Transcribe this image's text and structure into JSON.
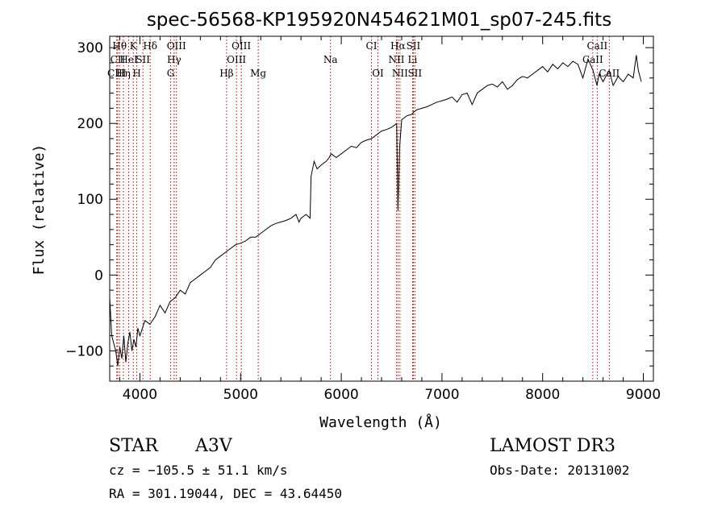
{
  "chart_data": {
    "type": "line",
    "title": "spec-56568-KP195920N454621M01_sp07-245.fits",
    "xlabel": "Wavelength (Å)",
    "ylabel": "Flux (relative)",
    "xlim": [
      3700,
      9100
    ],
    "ylim": [
      -140,
      315
    ],
    "x_ticks": [
      4000,
      5000,
      6000,
      7000,
      8000,
      9000
    ],
    "y_ticks": [
      -100,
      0,
      100,
      200,
      300
    ],
    "grid": false,
    "series": [
      {
        "x": [
          3700,
          3720,
          3740,
          3760,
          3780,
          3800,
          3820,
          3840,
          3860,
          3880,
          3900,
          3920,
          3940,
          3960,
          3980,
          4000,
          4050,
          4100,
          4150,
          4200,
          4250,
          4300,
          4350,
          4400,
          4450,
          4500,
          4550,
          4600,
          4650,
          4700,
          4750,
          4800,
          4850,
          4900,
          4950,
          5000,
          5050,
          5100,
          5150,
          5200,
          5250,
          5300,
          5350,
          5400,
          5450,
          5500,
          5550,
          5580,
          5600,
          5650,
          5690,
          5700,
          5730,
          5760,
          5800,
          5850,
          5880,
          5900,
          5950,
          6000,
          6050,
          6100,
          6150,
          6200,
          6250,
          6300,
          6350,
          6400,
          6450,
          6500,
          6550,
          6563,
          6580,
          6600,
          6650,
          6700,
          6720,
          6750,
          6800,
          6850,
          6900,
          6950,
          7000,
          7050,
          7100,
          7150,
          7200,
          7250,
          7300,
          7350,
          7400,
          7450,
          7500,
          7550,
          7600,
          7650,
          7700,
          7750,
          7800,
          7850,
          7900,
          7950,
          8000,
          8050,
          8100,
          8150,
          8200,
          8250,
          8300,
          8350,
          8400,
          8450,
          8500,
          8540,
          8560,
          8600,
          8660,
          8680,
          8700,
          8750,
          8800,
          8850,
          8900,
          8930,
          8950,
          8980
        ],
        "y": [
          -30,
          -80,
          -90,
          -100,
          -120,
          -95,
          -110,
          -80,
          -115,
          -90,
          -75,
          -100,
          -85,
          -95,
          -70,
          -80,
          -60,
          -65,
          -55,
          -40,
          -50,
          -35,
          -30,
          -20,
          -25,
          -10,
          -5,
          0,
          5,
          10,
          20,
          25,
          30,
          35,
          40,
          42,
          45,
          50,
          50,
          55,
          60,
          65,
          68,
          70,
          72,
          75,
          80,
          70,
          75,
          80,
          75,
          130,
          150,
          140,
          145,
          150,
          155,
          160,
          155,
          160,
          165,
          170,
          168,
          175,
          178,
          180,
          185,
          190,
          192,
          195,
          200,
          85,
          170,
          205,
          210,
          212,
          215,
          218,
          220,
          222,
          225,
          228,
          230,
          232,
          235,
          228,
          238,
          240,
          225,
          240,
          245,
          250,
          252,
          248,
          255,
          245,
          250,
          258,
          262,
          260,
          265,
          270,
          275,
          268,
          278,
          272,
          280,
          275,
          282,
          278,
          260,
          285,
          270,
          250,
          265,
          255,
          270,
          260,
          250,
          262,
          255,
          265,
          260,
          290,
          270,
          255
        ]
      }
    ],
    "lines": [
      {
        "name": "Hθ",
        "x": 3798,
        "row": 1
      },
      {
        "name": "CII",
        "x": 3780,
        "row": 2
      },
      {
        "name": "CIII",
        "x": 3770,
        "row": 3
      },
      {
        "name": "Hη",
        "x": 3836,
        "row": 3
      },
      {
        "name": "K",
        "x": 3934,
        "row": 1
      },
      {
        "name": "HeI",
        "x": 3889,
        "row": 2
      },
      {
        "name": "H",
        "x": 3969,
        "row": 3
      },
      {
        "name": "Hδ",
        "x": 4102,
        "row": 1
      },
      {
        "name": "SII",
        "x": 4030,
        "row": 2
      },
      {
        "name": "OIII",
        "x": 4363,
        "row": 1
      },
      {
        "name": "Hγ",
        "x": 4340,
        "row": 2
      },
      {
        "name": "G",
        "x": 4305,
        "row": 3
      },
      {
        "name": "OIII",
        "x": 5007,
        "row": 1
      },
      {
        "name": "OIII",
        "x": 4959,
        "row": 2
      },
      {
        "name": "Hβ",
        "x": 4861,
        "row": 3
      },
      {
        "name": "Mg",
        "x": 5175,
        "row": 3
      },
      {
        "name": "Na",
        "x": 5893,
        "row": 2
      },
      {
        "name": "CI",
        "x": 6300,
        "row": 1
      },
      {
        "name": "OI",
        "x": 6364,
        "row": 3
      },
      {
        "name": "Hα",
        "x": 6563,
        "row": 1
      },
      {
        "name": "NII",
        "x": 6548,
        "row": 2
      },
      {
        "name": "NII",
        "x": 6583,
        "row": 3
      },
      {
        "name": "SII",
        "x": 6716,
        "row": 1
      },
      {
        "name": "Li",
        "x": 6708,
        "row": 2
      },
      {
        "name": "SII",
        "x": 6731,
        "row": 3
      },
      {
        "name": "CaII",
        "x": 8542,
        "row": 1
      },
      {
        "name": "CaII",
        "x": 8498,
        "row": 2
      },
      {
        "name": "CaII",
        "x": 8662,
        "row": 3
      }
    ]
  },
  "info": {
    "class": "STAR",
    "subclass": "A3V",
    "survey": "LAMOST DR3",
    "cz": "cz = −105.5 ± 51.1 km/s",
    "obs_date": "Obs-Date: 20131002",
    "coords": "RA = 301.19044, DEC =  43.64450"
  },
  "colors": {
    "line_marker": "#b00000",
    "spectrum": "#000000",
    "axes": "#000000"
  }
}
